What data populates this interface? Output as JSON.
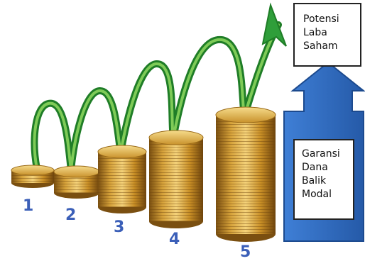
{
  "steps": [
    "1",
    "2",
    "3",
    "4",
    "5"
  ],
  "top_box": {
    "lines": [
      "Potensi",
      "Laba",
      "Saham"
    ]
  },
  "bottom_box": {
    "lines": [
      "Garansi",
      "Dana",
      "Balik",
      "Modal"
    ]
  },
  "colors": {
    "number_blue": "#3b5fb8",
    "arrow_blue": "#2f6dc4",
    "arrow_blue_dark": "#1c4a8e",
    "growth_green": "#2f9e3a",
    "coin_gold": "#d9a530",
    "coin_dark": "#8a5a12"
  },
  "icons": [
    "coin-stack-icon",
    "growth-arrow-icon",
    "up-arrow-icon"
  ]
}
